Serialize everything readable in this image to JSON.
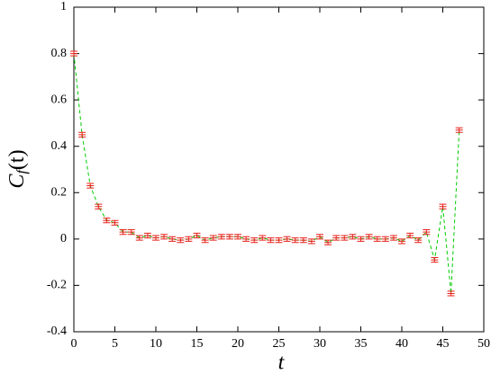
{
  "chart_data": {
    "type": "line",
    "x_label": "t",
    "y_label": [
      "C",
      "f",
      "(t)"
    ],
    "x": [
      0,
      1,
      2,
      3,
      4,
      5,
      6,
      7,
      8,
      9,
      10,
      11,
      12,
      13,
      14,
      15,
      16,
      17,
      18,
      19,
      20,
      21,
      22,
      23,
      24,
      25,
      26,
      27,
      28,
      29,
      30,
      31,
      32,
      33,
      34,
      35,
      36,
      37,
      38,
      39,
      40,
      41,
      42,
      43,
      44,
      45,
      46,
      47
    ],
    "series": [
      {
        "color": "#00cc00",
        "error_color": "#e8211b",
        "values": [
          0.8,
          0.45,
          0.23,
          0.14,
          0.08,
          0.07,
          0.03,
          0.03,
          0.005,
          0.015,
          0.005,
          0.01,
          0.0,
          -0.005,
          0.0,
          0.015,
          -0.005,
          0.005,
          0.01,
          0.01,
          0.01,
          0.0,
          -0.005,
          0.005,
          -0.005,
          -0.005,
          0.0,
          -0.005,
          -0.005,
          -0.01,
          0.01,
          -0.015,
          0.005,
          0.005,
          0.01,
          0.0,
          0.01,
          0.0,
          0.0,
          0.005,
          -0.01,
          0.015,
          -0.005,
          0.03,
          -0.09,
          0.14,
          -0.235,
          0.47
        ],
        "errors": [
          0.01,
          0.01,
          0.01,
          0.01,
          0.01,
          0.01,
          0.01,
          0.01,
          0.01,
          0.01,
          0.01,
          0.01,
          0.01,
          0.01,
          0.01,
          0.01,
          0.01,
          0.01,
          0.01,
          0.01,
          0.01,
          0.01,
          0.01,
          0.01,
          0.01,
          0.01,
          0.01,
          0.01,
          0.01,
          0.01,
          0.01,
          0.01,
          0.01,
          0.01,
          0.01,
          0.01,
          0.01,
          0.01,
          0.01,
          0.01,
          0.01,
          0.01,
          0.01,
          0.01,
          0.01,
          0.01,
          0.01,
          0.01
        ]
      }
    ],
    "xlim": [
      0,
      50
    ],
    "xticks": [
      0,
      5,
      10,
      15,
      20,
      25,
      30,
      35,
      40,
      45,
      50
    ],
    "ylim": [
      -0.4,
      1
    ],
    "yticks": [
      -0.4,
      -0.2,
      0,
      0.2,
      0.4,
      0.6,
      0.8,
      1
    ]
  }
}
